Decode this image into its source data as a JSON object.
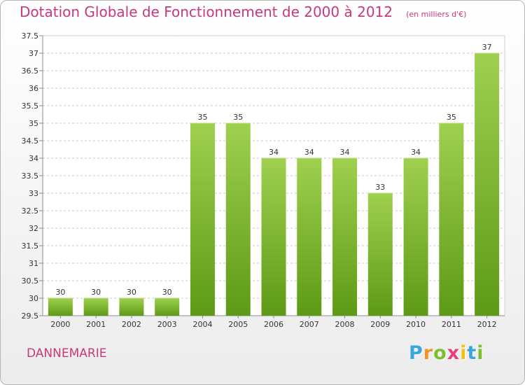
{
  "chart_data": {
    "type": "bar",
    "title": "Dotation Globale de Fonctionnement de 2000 à 2012",
    "unit_note": "(en milliers d'€)",
    "categories": [
      "2000",
      "2001",
      "2002",
      "2003",
      "2004",
      "2005",
      "2006",
      "2007",
      "2008",
      "2009",
      "2010",
      "2011",
      "2012"
    ],
    "values": [
      30,
      30,
      30,
      30,
      35,
      35,
      34,
      34,
      34,
      33,
      34,
      35,
      37
    ],
    "value_labels": [
      "30",
      "30",
      "30",
      "30",
      "35",
      "35",
      "34",
      "34",
      "34",
      "33",
      "34",
      "35",
      "37"
    ],
    "ylim": [
      29.5,
      37.5
    ],
    "yticks": [
      "29.5",
      "30",
      "30.5",
      "31",
      "31.5",
      "32",
      "32.5",
      "33",
      "33.5",
      "34",
      "34.5",
      "35",
      "35.5",
      "36",
      "36.5",
      "37",
      "37.5"
    ],
    "grid": true,
    "legend": "none",
    "colors": {
      "bar_top": "#9fd04f",
      "bar_bottom": "#5d9a16",
      "title": "#c8387a"
    }
  },
  "commune": "DANNEMARIE",
  "logo": {
    "letters": [
      "P",
      "r",
      "o",
      "x",
      "i",
      "t",
      "i"
    ],
    "colors": [
      "#3aa6dd",
      "#f39221",
      "#7cbf2e",
      "#e5407a",
      "#f3c21a",
      "#3aa6dd",
      "#7cbf2e"
    ]
  }
}
